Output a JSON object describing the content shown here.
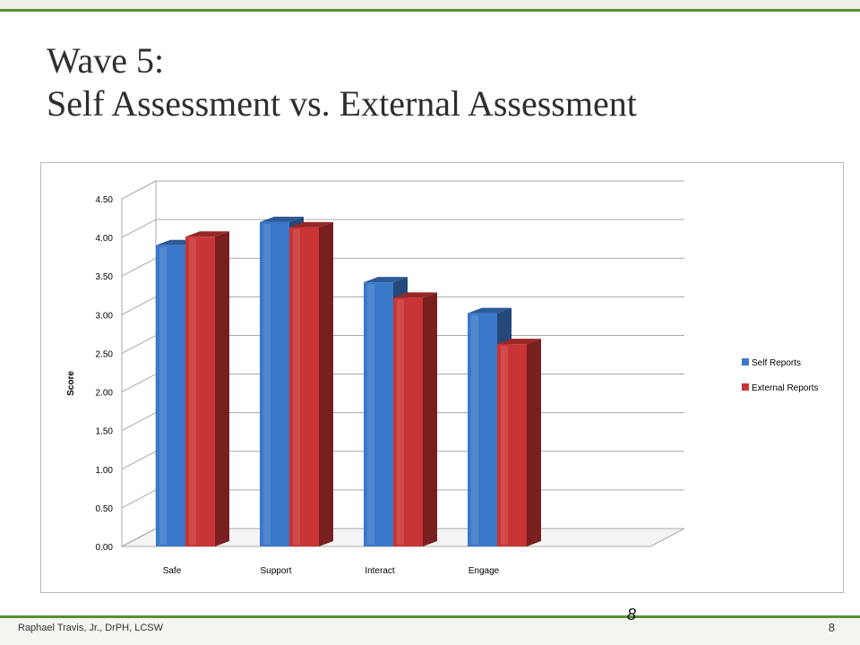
{
  "slide": {
    "title_line1": "Wave 5:",
    "title_line2": "Self Assessment vs. External Assessment",
    "footer_author": "Raphael Travis, Jr., DrPH, LCSW",
    "page_number": "8",
    "float_page_number": "8"
  },
  "colors": {
    "accent_green": "#5b8f3a",
    "self_reports": "#3a78c9",
    "external_reports": "#c93434"
  },
  "chart_data": {
    "type": "bar",
    "title": "",
    "xlabel": "",
    "ylabel": "Score",
    "categories": [
      "Safe",
      "Support",
      "Interact",
      "Engage"
    ],
    "series": [
      {
        "name": "Self Reports",
        "values": [
          3.9,
          4.2,
          3.42,
          3.02
        ]
      },
      {
        "name": "External Reports",
        "values": [
          4.01,
          4.13,
          3.22,
          2.62
        ]
      }
    ],
    "ylim": [
      0,
      4.5
    ],
    "yticks": [
      "0.00",
      "0.50",
      "1.00",
      "1.50",
      "2.00",
      "2.50",
      "3.00",
      "3.50",
      "4.00",
      "4.50"
    ],
    "grid": true,
    "legend_position": "right",
    "style": "3d-clustered-column"
  }
}
